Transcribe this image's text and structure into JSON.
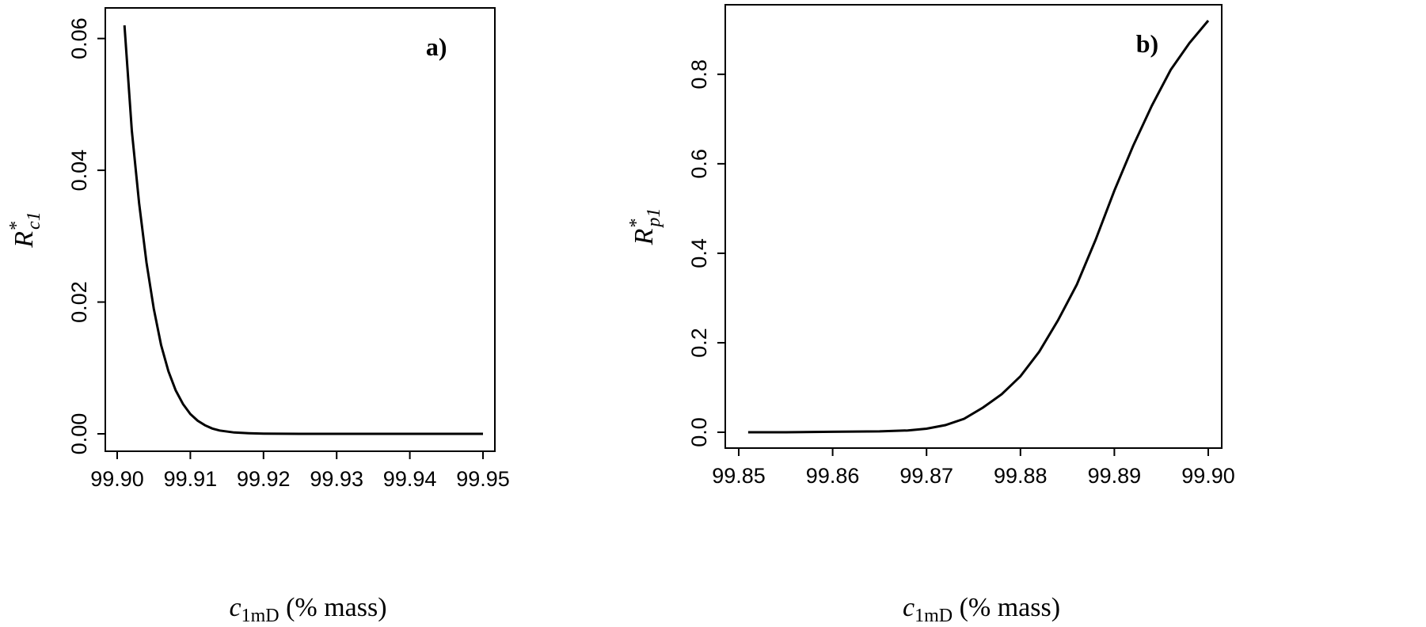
{
  "chart_data": [
    {
      "type": "line",
      "panel_label": "a)",
      "xlabel": {
        "var": "c",
        "sub": "1mD",
        "unit": "(% mass)"
      },
      "ylabel": {
        "var": "R",
        "sup": "*",
        "sub": "c1"
      },
      "xlim": [
        99.9,
        99.95
      ],
      "ylim": [
        0.0,
        0.062
      ],
      "xticks": [
        99.9,
        99.91,
        99.92,
        99.93,
        99.94,
        99.95
      ],
      "xtick_labels": [
        "99.90",
        "99.91",
        "99.92",
        "99.93",
        "99.94",
        "99.95"
      ],
      "yticks": [
        0.0,
        0.02,
        0.04,
        0.06
      ],
      "ytick_labels": [
        "0.00",
        "0.02",
        "0.04",
        "0.06"
      ],
      "grid": false,
      "series": [
        {
          "x": [
            99.901,
            99.902,
            99.903,
            99.904,
            99.905,
            99.906,
            99.907,
            99.908,
            99.909,
            99.91,
            99.911,
            99.912,
            99.913,
            99.914,
            99.916,
            99.918,
            99.92,
            99.925,
            99.93,
            99.935,
            99.94,
            99.945,
            99.95
          ],
          "y": [
            0.062,
            0.046,
            0.035,
            0.026,
            0.019,
            0.0135,
            0.0095,
            0.0066,
            0.0045,
            0.003,
            0.002,
            0.0013,
            0.0008,
            0.0005,
            0.0002,
            0.0001,
            4e-05,
            0.0,
            0.0,
            0.0,
            0.0,
            0.0,
            0.0
          ]
        }
      ]
    },
    {
      "type": "line",
      "panel_label": "b)",
      "xlabel": {
        "var": "c",
        "sub": "1mD",
        "unit": "(% mass)"
      },
      "ylabel": {
        "var": "R",
        "sup": "*",
        "sub": "p1"
      },
      "xlim": [
        99.85,
        99.9
      ],
      "ylim": [
        0.0,
        0.92
      ],
      "xticks": [
        99.85,
        99.86,
        99.87,
        99.88,
        99.89,
        99.9
      ],
      "xtick_labels": [
        "99.85",
        "99.86",
        "99.87",
        "99.88",
        "99.89",
        "99.90"
      ],
      "yticks": [
        0.0,
        0.2,
        0.4,
        0.6,
        0.8
      ],
      "ytick_labels": [
        "0.0",
        "0.2",
        "0.4",
        "0.6",
        "0.8"
      ],
      "grid": false,
      "series": [
        {
          "x": [
            99.851,
            99.855,
            99.86,
            99.865,
            99.868,
            99.87,
            99.872,
            99.874,
            99.876,
            99.878,
            99.88,
            99.882,
            99.884,
            99.886,
            99.888,
            99.89,
            99.892,
            99.894,
            99.896,
            99.898,
            99.9
          ],
          "y": [
            0.0,
            0.0,
            0.001,
            0.002,
            0.004,
            0.008,
            0.016,
            0.03,
            0.055,
            0.085,
            0.125,
            0.18,
            0.25,
            0.33,
            0.43,
            0.54,
            0.64,
            0.73,
            0.81,
            0.87,
            0.92
          ]
        }
      ]
    }
  ]
}
